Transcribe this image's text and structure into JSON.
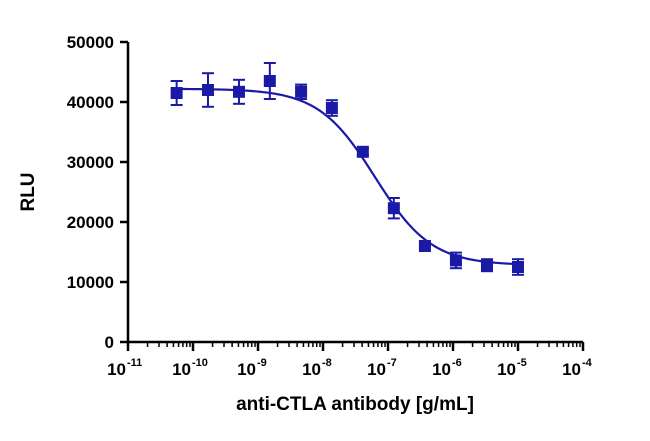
{
  "chart_data": {
    "type": "scatter",
    "title": "",
    "xlabel": "anti-CTLA antibody [g/mL]",
    "ylabel": "RLU",
    "x_scale": "log",
    "xlim": [
      1e-11,
      0.0001
    ],
    "ylim": [
      0,
      50000
    ],
    "x_ticks": [
      {
        "base": "10",
        "exp": "-11"
      },
      {
        "base": "10",
        "exp": "-10"
      },
      {
        "base": "10",
        "exp": "-9"
      },
      {
        "base": "10",
        "exp": "-8"
      },
      {
        "base": "10",
        "exp": "-7"
      },
      {
        "base": "10",
        "exp": "-6"
      },
      {
        "base": "10",
        "exp": "-5"
      },
      {
        "base": "10",
        "exp": "-4"
      }
    ],
    "y_ticks": [
      "0",
      "10000",
      "20000",
      "30000",
      "40000",
      "50000"
    ],
    "grid": false,
    "legend": "none",
    "colors": {
      "series": "#1a1aa6",
      "axis": "#000000"
    },
    "marker": "square",
    "series": [
      {
        "x": [
          5.6e-11,
          1.7e-10,
          5.1e-10,
          1.52e-09,
          4.6e-09,
          1.37e-08,
          4.1e-08,
          1.23e-07,
          3.7e-07,
          1.11e-06,
          3.33e-06,
          1e-05
        ],
        "y": [
          41500,
          42000,
          41700,
          43500,
          41700,
          39000,
          31700,
          22300,
          16000,
          13600,
          12800,
          12500
        ],
        "error": [
          2000,
          2800,
          2000,
          3000,
          1200,
          1300,
          600,
          1700,
          500,
          1300,
          1000,
          1300
        ]
      }
    ],
    "fit_curve": {
      "model": "4PL",
      "top": 42200,
      "bottom": 12800,
      "ec50": 6.3e-08,
      "hill": 1.0
    }
  }
}
